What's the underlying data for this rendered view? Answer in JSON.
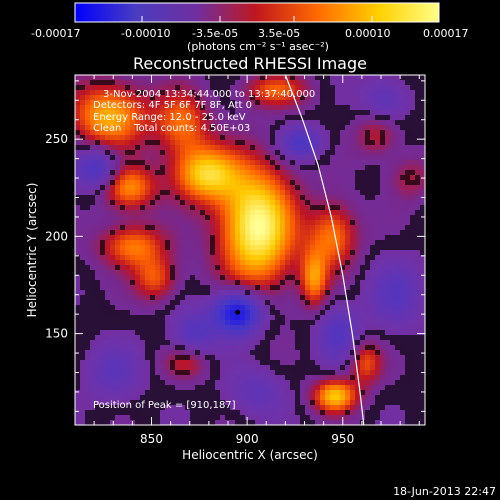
{
  "colorbar": {
    "tick_labels": [
      "-0.00017",
      "-0.00010",
      "-3.5e-05",
      "3.5e-05",
      "0.00010",
      "0.00017"
    ],
    "tick_values": [
      -0.00017,
      -0.0001,
      -3.5e-05,
      3.5e-05,
      0.0001,
      0.00017
    ],
    "units": "(photons cm⁻² s⁻¹ asec⁻²)",
    "colors": [
      "#0000ff",
      "#4a3cc0",
      "#6f2fa0",
      "#c0181e",
      "#ff6a00",
      "#ffd000",
      "#ffff88"
    ]
  },
  "chart_data": {
    "type": "heatmap",
    "title": "Reconstructed RHESSI Image",
    "xlabel": "Heliocentric X (arcsec)",
    "ylabel": "Heliocentric Y (arcsec)",
    "xlim": [
      810,
      993
    ],
    "ylim": [
      103,
      283
    ],
    "x_ticks": [
      850,
      900,
      950
    ],
    "y_ticks": [
      150,
      200,
      250
    ],
    "info_lines": [
      "3-Nov-2004 13:34:44.000 to 13:37:40.000",
      "Detectors: 4F 5F 6F 7F 8F, Att 0",
      "Energy Range: 12.0 - 25.0 keV",
      "Clean    Total counts: 4.50E+03"
    ],
    "peak_label": "Position of Peak = [910,187]",
    "peak": [
      910,
      187
    ],
    "minimum_marker": [
      895,
      161
    ],
    "value_range": [
      -0.00017,
      0.00017
    ],
    "blobs": [
      {
        "x": 905,
        "y": 205,
        "sx": 14,
        "sy": 22,
        "v": 1.0
      },
      {
        "x": 878,
        "y": 232,
        "sx": 12,
        "sy": 10,
        "v": 0.75
      },
      {
        "x": 828,
        "y": 262,
        "sx": 14,
        "sy": 12,
        "v": 0.7
      },
      {
        "x": 866,
        "y": 258,
        "sx": 10,
        "sy": 12,
        "v": 0.5
      },
      {
        "x": 838,
        "y": 225,
        "sx": 10,
        "sy": 8,
        "v": 0.6
      },
      {
        "x": 840,
        "y": 195,
        "sx": 12,
        "sy": 8,
        "v": 0.55
      },
      {
        "x": 852,
        "y": 178,
        "sx": 8,
        "sy": 8,
        "v": 0.45
      },
      {
        "x": 915,
        "y": 275,
        "sx": 12,
        "sy": 6,
        "v": 0.45
      },
      {
        "x": 945,
        "y": 200,
        "sx": 9,
        "sy": 12,
        "v": 0.55
      },
      {
        "x": 968,
        "y": 252,
        "sx": 8,
        "sy": 8,
        "v": 0.3
      },
      {
        "x": 946,
        "y": 118,
        "sx": 8,
        "sy": 6,
        "v": 0.75
      },
      {
        "x": 962,
        "y": 135,
        "sx": 6,
        "sy": 8,
        "v": 0.45
      },
      {
        "x": 935,
        "y": 178,
        "sx": 5,
        "sy": 10,
        "v": 0.55
      },
      {
        "x": 868,
        "y": 135,
        "sx": 8,
        "sy": 6,
        "v": 0.3
      },
      {
        "x": 985,
        "y": 230,
        "sx": 8,
        "sy": 8,
        "v": 0.25
      },
      {
        "x": 895,
        "y": 161,
        "sx": 9,
        "sy": 8,
        "v": -0.9
      },
      {
        "x": 872,
        "y": 150,
        "sx": 8,
        "sy": 8,
        "v": -0.35
      },
      {
        "x": 822,
        "y": 235,
        "sx": 8,
        "sy": 8,
        "v": -0.5
      },
      {
        "x": 928,
        "y": 248,
        "sx": 8,
        "sy": 6,
        "v": -0.45
      },
      {
        "x": 948,
        "y": 150,
        "sx": 8,
        "sy": 10,
        "v": -0.35
      },
      {
        "x": 978,
        "y": 170,
        "sx": 10,
        "sy": 12,
        "v": -0.3
      },
      {
        "x": 972,
        "y": 270,
        "sx": 8,
        "sy": 8,
        "v": -0.3
      },
      {
        "x": 830,
        "y": 130,
        "sx": 10,
        "sy": 10,
        "v": -0.25
      },
      {
        "x": 905,
        "y": 120,
        "sx": 10,
        "sy": 8,
        "v": -0.25
      }
    ],
    "limb_points": [
      [
        920,
        283
      ],
      [
        929,
        260
      ],
      [
        937,
        237
      ],
      [
        944,
        210
      ],
      [
        950,
        180
      ],
      [
        955,
        150
      ],
      [
        959,
        120
      ],
      [
        961,
        103
      ]
    ]
  },
  "footer_timestamp": "18-Jun-2013 22:47"
}
